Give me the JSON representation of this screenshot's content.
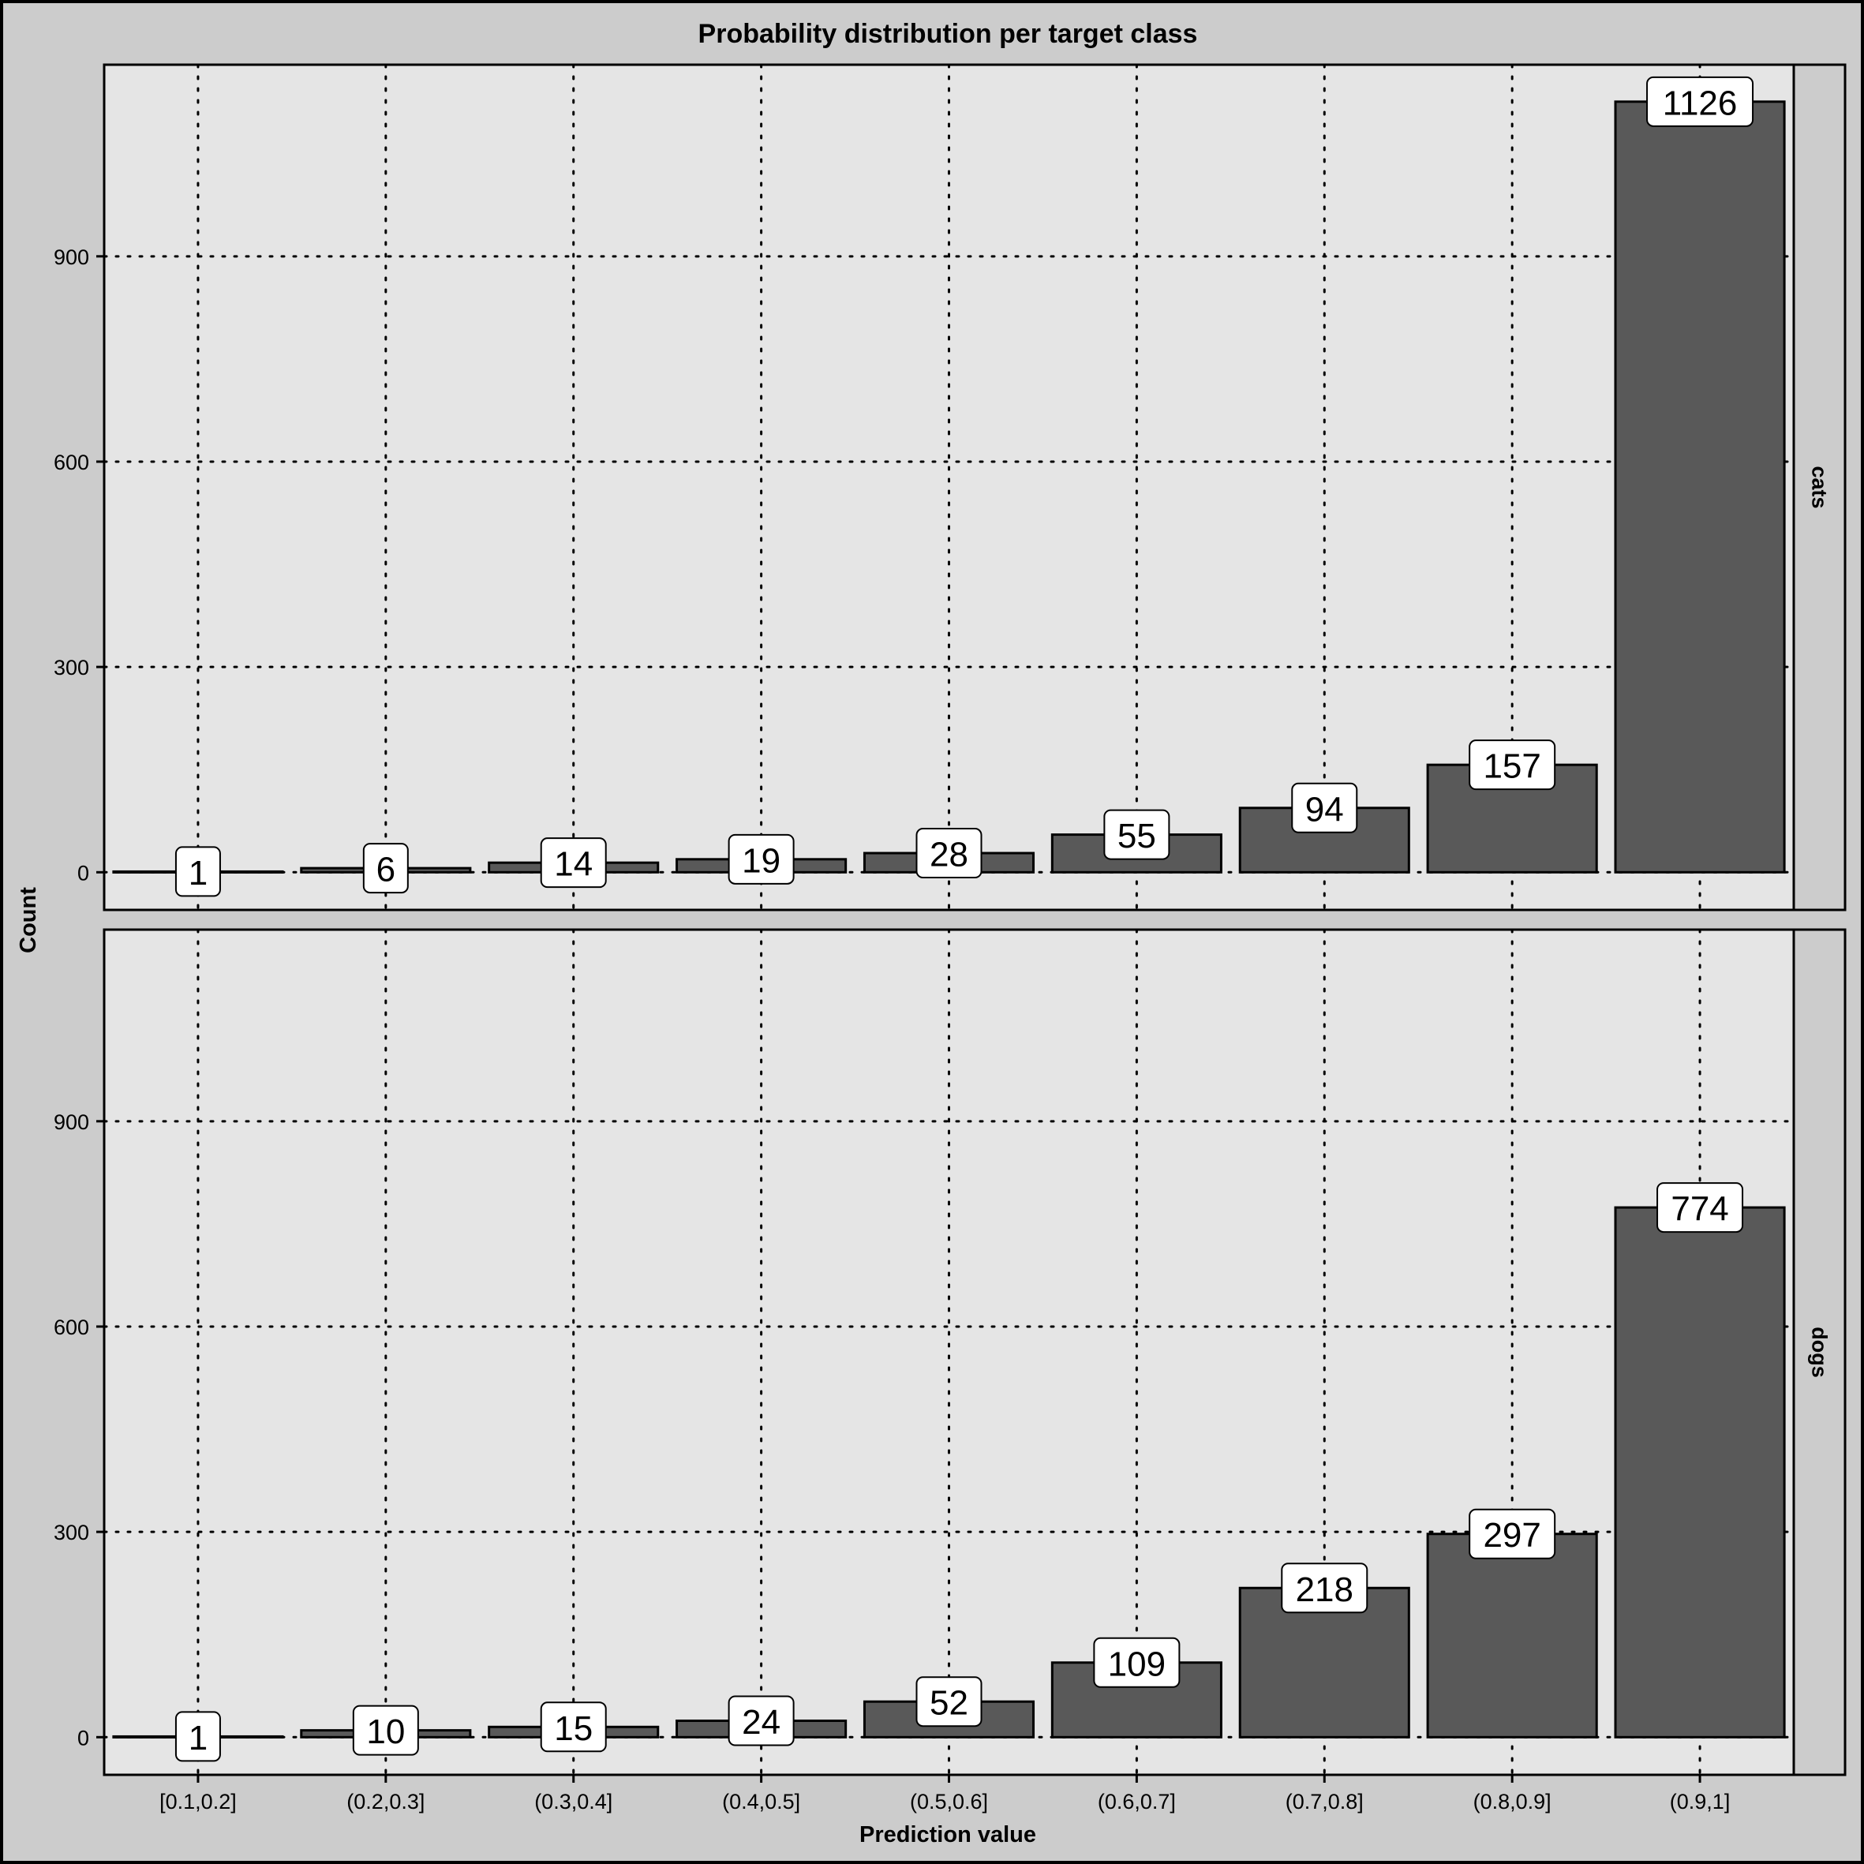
{
  "chart_data": {
    "type": "bar",
    "title": "Probability distribution per target class",
    "xlabel": "Prediction value",
    "ylabel": "Count",
    "categories": [
      "[0.1,0.2]",
      "(0.2,0.3]",
      "(0.3,0.4]",
      "(0.4,0.5]",
      "(0.5,0.6]",
      "(0.6,0.7]",
      "(0.7,0.8]",
      "(0.8,0.9]",
      "(0.9,1]"
    ],
    "yticks": [
      0,
      300,
      600,
      900
    ],
    "ylim": [
      -55,
      1180
    ],
    "grid": true,
    "bar_color": "#595959",
    "panel_color": "#e5e5e5",
    "facets": [
      {
        "name": "cats",
        "values": [
          1,
          6,
          14,
          19,
          28,
          55,
          94,
          157,
          1126
        ]
      },
      {
        "name": "dogs",
        "values": [
          1,
          10,
          15,
          24,
          52,
          109,
          218,
          297,
          774
        ]
      }
    ]
  }
}
